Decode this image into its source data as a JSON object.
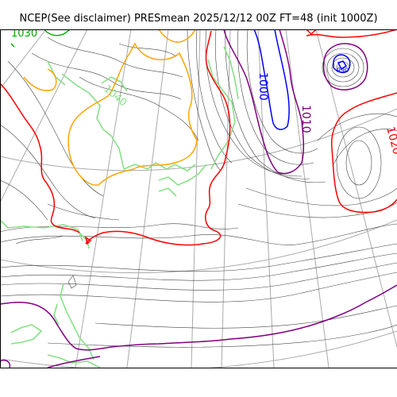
{
  "title": "NCEP(See disclaimer) PRESmean 2025/12/12 00Z FT=48 (init 1000Z)",
  "colors": {
    "background": "#ffffff",
    "grid": "#aaaaaa",
    "isobar": "#444444",
    "coast": "#88e088",
    "contour_1010": "#800080",
    "contour_1000": "#0000ff",
    "contour_1020": "#ff0000",
    "contour_1030": "#ffa500",
    "contour_1040": "#00aa00",
    "label_green": "#88e088"
  },
  "labels": {
    "l1000": "1000",
    "l1010": "1010",
    "l1020": "1020",
    "l1030": "1030",
    "l1040": "1040",
    "l990": "990"
  }
}
